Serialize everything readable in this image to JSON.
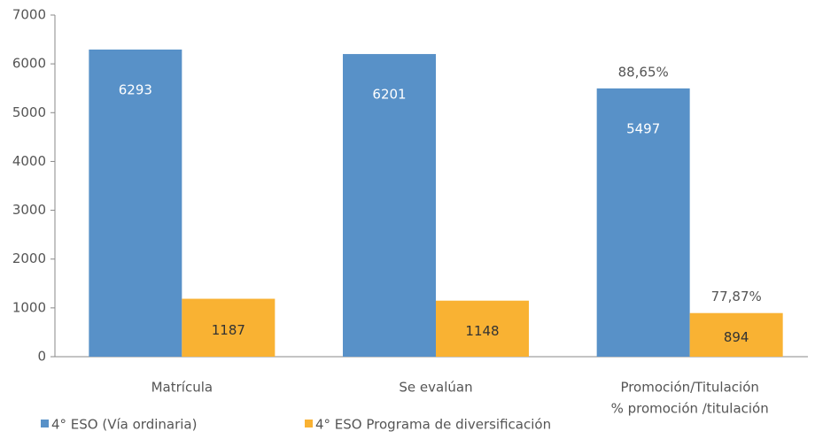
{
  "chart_data": {
    "type": "bar",
    "categories": [
      "Matrícula",
      "Se evalúan",
      [
        "Promoción/Titulación",
        "% promoción  /titulación"
      ]
    ],
    "series": [
      {
        "name": "4° ESO (Vía ordinaria)",
        "color": "#5891c8",
        "values": [
          6293,
          6201,
          5497
        ],
        "annotations": [
          null,
          null,
          "88,65%"
        ]
      },
      {
        "name": "4° ESO Programa de diversificación",
        "color": "#f9b233",
        "values": [
          1187,
          1148,
          894
        ],
        "annotations": [
          null,
          null,
          "77,87%"
        ]
      }
    ],
    "ylim": [
      0,
      7000
    ],
    "yticks": [
      0,
      1000,
      2000,
      3000,
      4000,
      5000,
      6000,
      7000
    ],
    "grid": false,
    "legend": "bottom"
  }
}
